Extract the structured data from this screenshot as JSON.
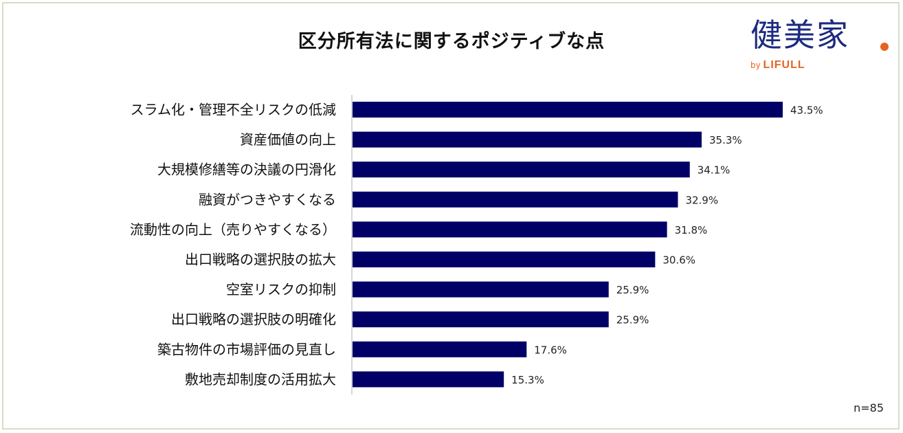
{
  "chart_data": {
    "type": "bar",
    "orientation": "horizontal",
    "title": "区分所有法に関するポジティブな点",
    "categories": [
      "スラム化・管理不全リスクの低減",
      "資産価値の向上",
      "大規模修繕等の決議の円滑化",
      "融資がつきやすくなる",
      "流動性の向上（売りやすくなる）",
      "出口戦略の選択肢の拡大",
      "空室リスクの抑制",
      "出口戦略の選択肢の明確化",
      "築古物件の市場評価の見直し",
      "敷地売却制度の活用拡大"
    ],
    "values": [
      43.5,
      35.3,
      34.1,
      32.9,
      31.8,
      30.6,
      25.9,
      25.9,
      17.6,
      15.3
    ],
    "value_labels": [
      "43.5%",
      "35.3%",
      "34.1%",
      "32.9%",
      "31.8%",
      "30.6%",
      "25.9%",
      "25.9%",
      "17.6%",
      "15.3%"
    ],
    "unit": "%",
    "grid": false,
    "bar_color": "#000066",
    "note": "n=85"
  },
  "logo": {
    "main": "健美家",
    "by": "by",
    "brand": "LIFULL",
    "text_color": "#1c2a80",
    "accent_color": "#e8621f"
  }
}
